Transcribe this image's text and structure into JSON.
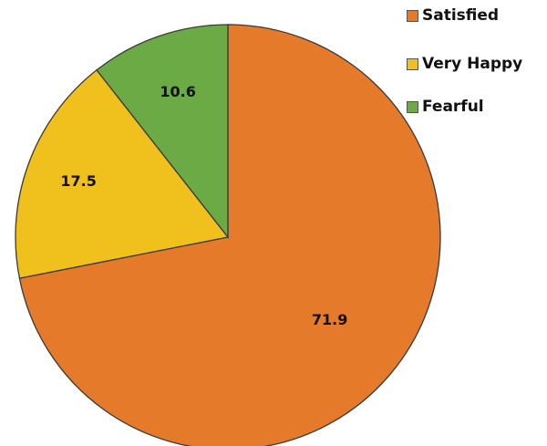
{
  "chart_data": {
    "type": "pie",
    "categories": [
      "Satisfied",
      "Very Happy",
      "Fearful"
    ],
    "values": [
      71.9,
      17.5,
      10.6
    ],
    "colors": [
      "#E57A2A",
      "#F0C01C",
      "#6BAA44"
    ],
    "data_labels": [
      "71.9",
      "17.5",
      "10.6"
    ],
    "legend": "top-right",
    "start_angle": "12 o'clock",
    "direction": "clockwise"
  }
}
